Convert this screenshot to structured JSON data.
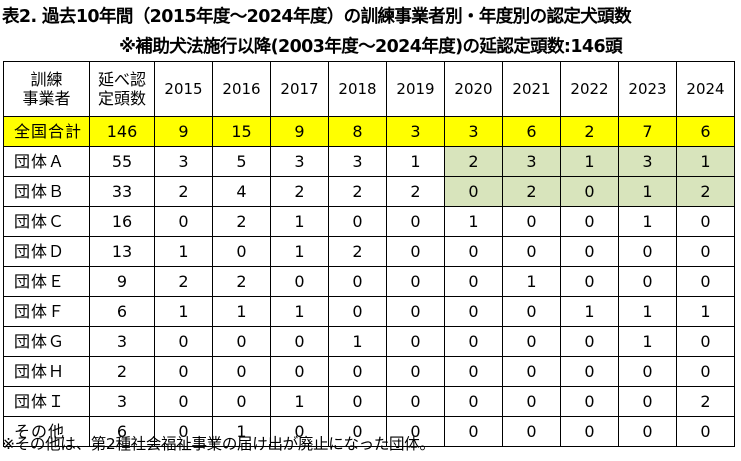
{
  "title": "表2. 過去10年間（2015年度～2024年度）の訓練事業者別・年度別の認定犬頭数",
  "subtitle": "※補助犬法施行以降(2003年度～2024年度)の延認定頭数:146頭",
  "header": {
    "col1_line1": "訓練",
    "col1_line2": "事業者",
    "col2_line1": "延べ認",
    "col2_line2": "定頭数",
    "years": [
      "2015",
      "2016",
      "2017",
      "2018",
      "2019",
      "2020",
      "2021",
      "2022",
      "2023",
      "2024"
    ]
  },
  "highlight_colors": {
    "total_row": "#ffff00",
    "recent_cells": "#d8e4bc"
  },
  "rows": [
    {
      "name": "全国合計",
      "total": "146",
      "values": [
        "9",
        "15",
        "9",
        "8",
        "3",
        "3",
        "6",
        "2",
        "7",
        "6"
      ]
    },
    {
      "name": "団体Ａ",
      "total": "55",
      "values": [
        "3",
        "5",
        "3",
        "3",
        "1",
        "2",
        "3",
        "1",
        "3",
        "1"
      ]
    },
    {
      "name": "団体Ｂ",
      "total": "33",
      "values": [
        "2",
        "4",
        "2",
        "2",
        "2",
        "0",
        "2",
        "0",
        "1",
        "2"
      ]
    },
    {
      "name": "団体Ｃ",
      "total": "16",
      "values": [
        "0",
        "2",
        "1",
        "0",
        "0",
        "1",
        "0",
        "0",
        "1",
        "0"
      ]
    },
    {
      "name": "団体Ｄ",
      "total": "13",
      "values": [
        "1",
        "0",
        "1",
        "2",
        "0",
        "0",
        "0",
        "0",
        "0",
        "0"
      ]
    },
    {
      "name": "団体Ｅ",
      "total": "9",
      "values": [
        "2",
        "2",
        "0",
        "0",
        "0",
        "0",
        "1",
        "0",
        "0",
        "0"
      ]
    },
    {
      "name": "団体Ｆ",
      "total": "6",
      "values": [
        "1",
        "1",
        "1",
        "0",
        "0",
        "0",
        "0",
        "1",
        "1",
        "1"
      ]
    },
    {
      "name": "団体Ｇ",
      "total": "3",
      "values": [
        "0",
        "0",
        "0",
        "1",
        "0",
        "0",
        "0",
        "0",
        "1",
        "0"
      ]
    },
    {
      "name": "団体Ｈ",
      "total": "2",
      "values": [
        "0",
        "0",
        "0",
        "0",
        "0",
        "0",
        "0",
        "0",
        "0",
        "0"
      ]
    },
    {
      "name": "団体Ｉ",
      "total": "3",
      "values": [
        "0",
        "0",
        "1",
        "0",
        "0",
        "0",
        "0",
        "0",
        "0",
        "2"
      ]
    },
    {
      "name": "その他",
      "total": "6",
      "values": [
        "0",
        "1",
        "0",
        "0",
        "0",
        "0",
        "0",
        "0",
        "0",
        "0"
      ]
    }
  ],
  "note": "※その他は、第2種社会福祉事業の届け出が廃止になった団体。"
}
